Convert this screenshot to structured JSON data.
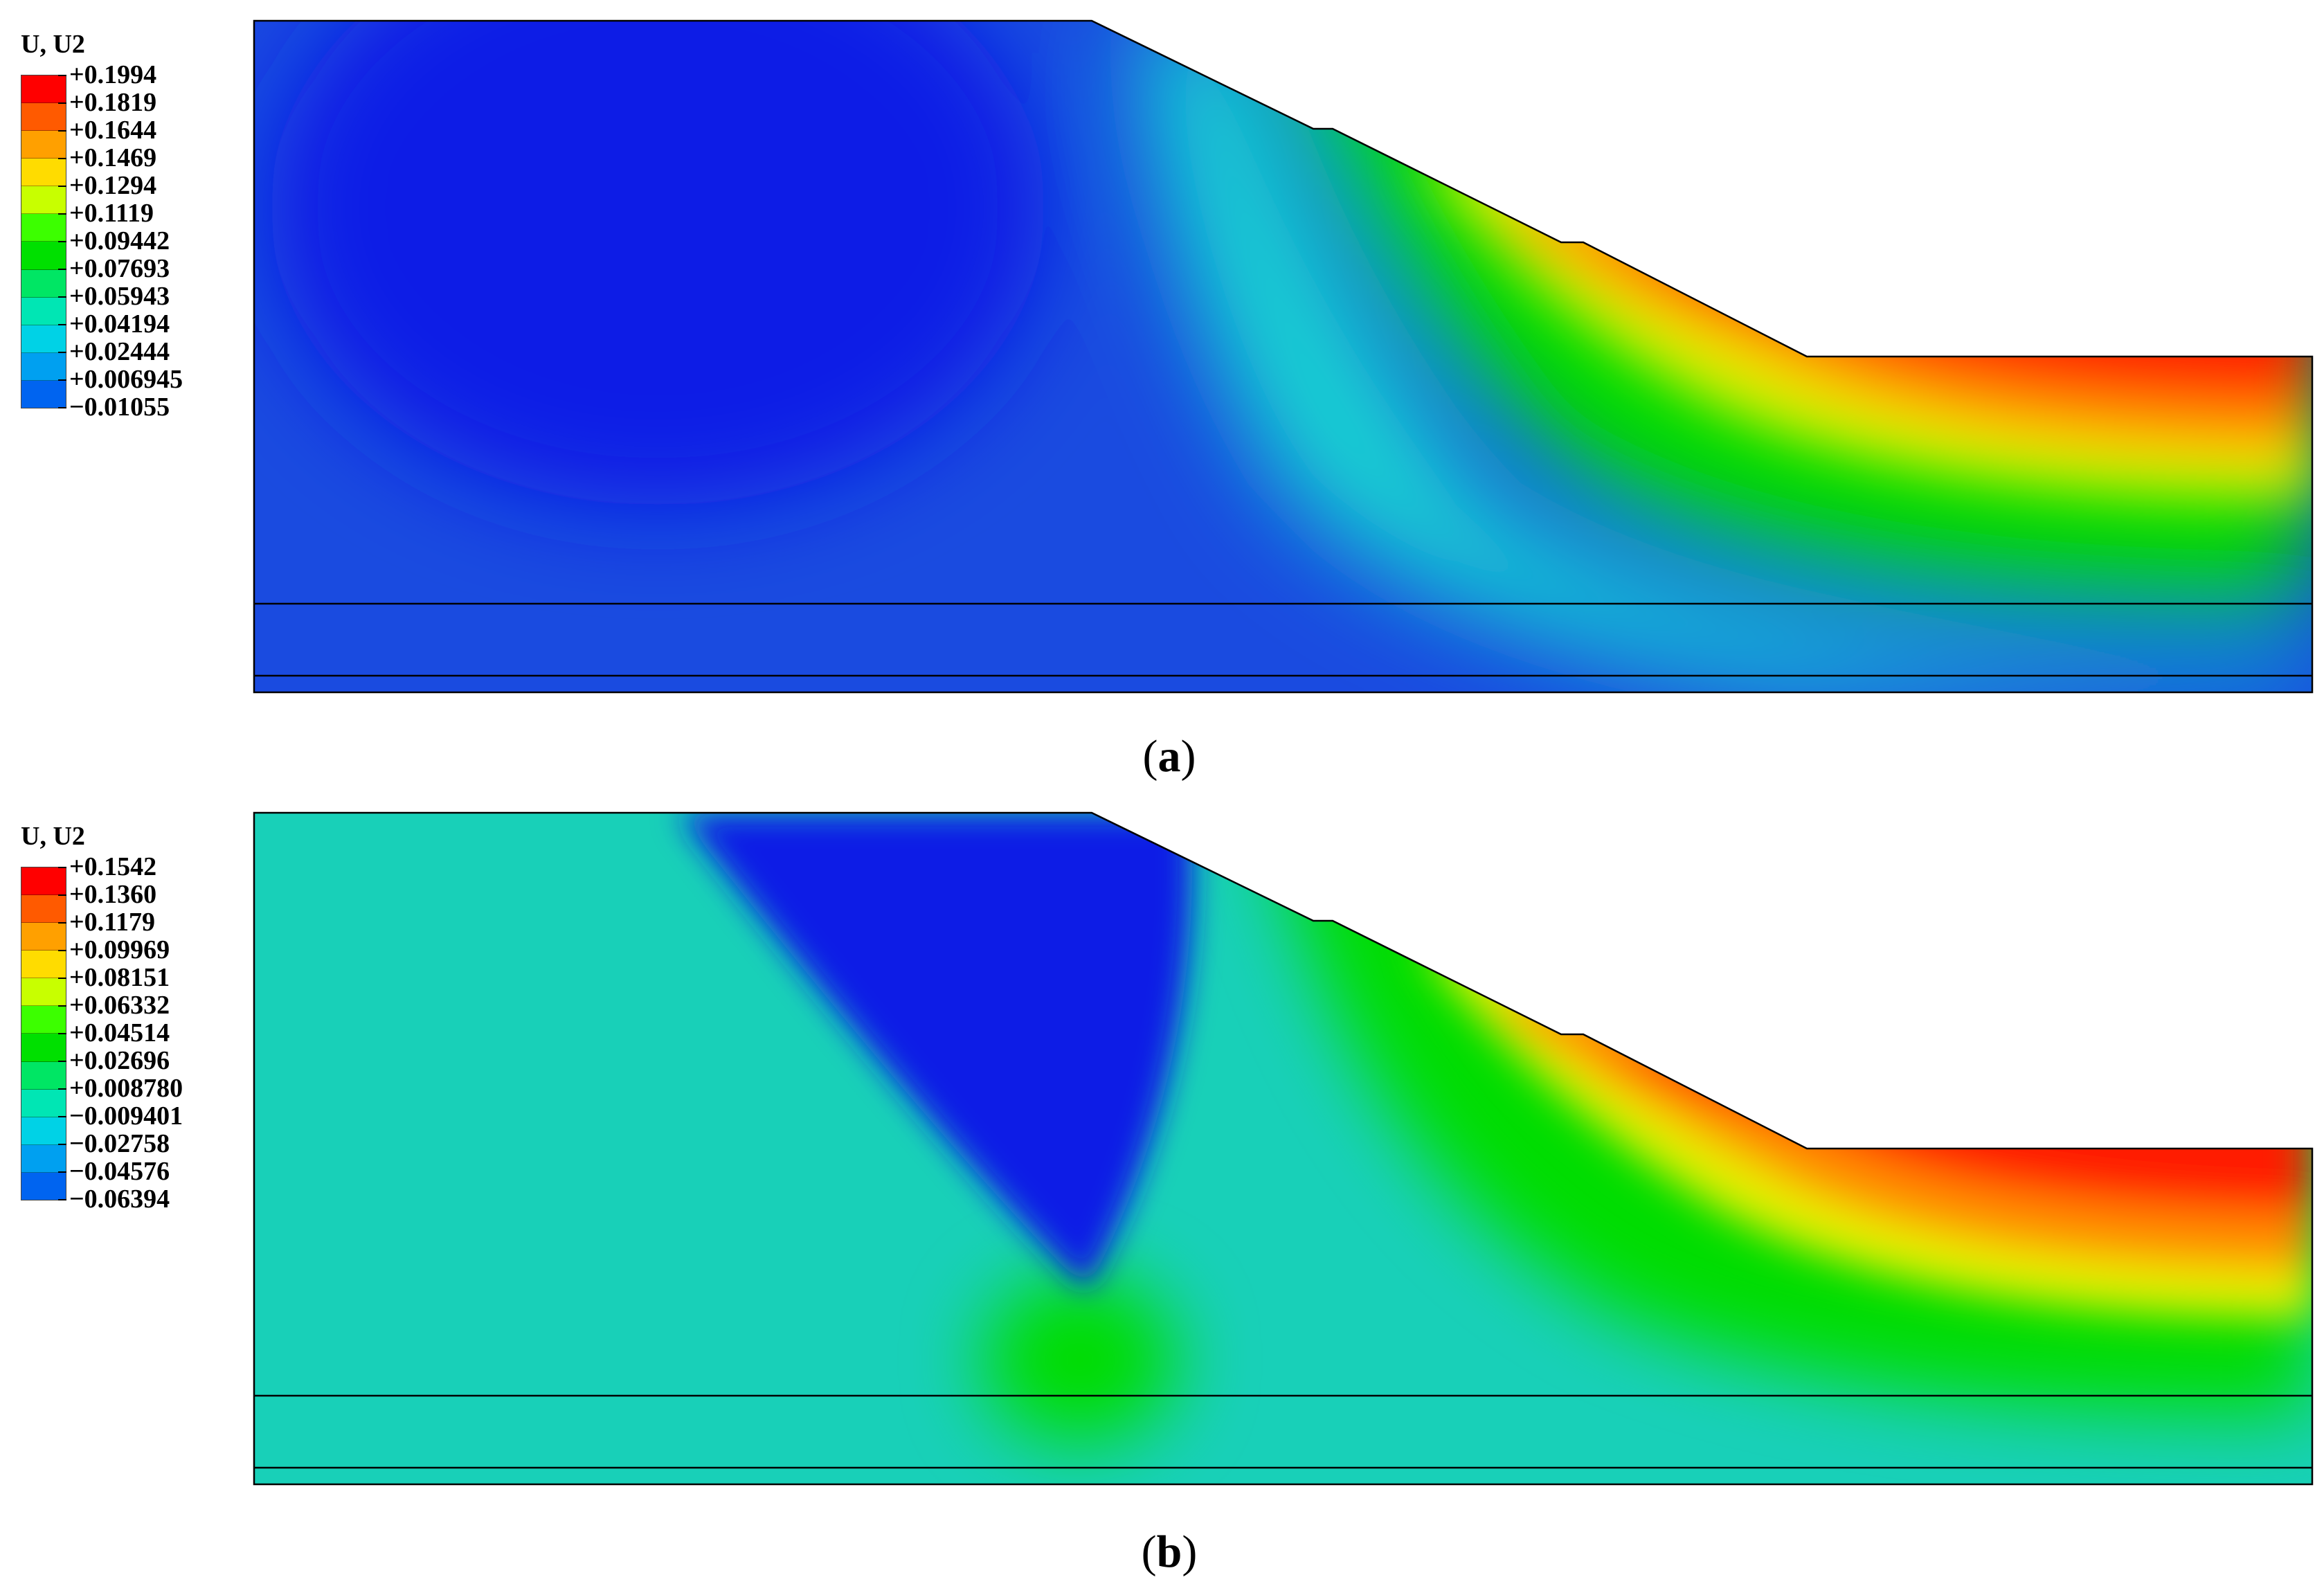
{
  "panels": [
    {
      "id": "a",
      "legend_title": "U, U2",
      "legend_values": [
        "+0.1994",
        "+0.1819",
        "+0.1644",
        "+0.1469",
        "+0.1294",
        "+0.1119",
        "+0.09442",
        "+0.07693",
        "+0.05943",
        "+0.04194",
        "+0.02444",
        "+0.006945",
        "−0.01055"
      ],
      "caption_letter": "a"
    },
    {
      "id": "b",
      "legend_title": "U, U2",
      "legend_values": [
        "+0.1542",
        "+0.1360",
        "+0.1179",
        "+0.09969",
        "+0.08151",
        "+0.06332",
        "+0.04514",
        "+0.02696",
        "+0.008780",
        "−0.009401",
        "−0.02758",
        "−0.04576",
        "−0.06394"
      ],
      "caption_letter": "b"
    }
  ],
  "colormap": [
    "#ff0000",
    "#ff5a00",
    "#ffa000",
    "#ffdc00",
    "#c8ff00",
    "#3cff00",
    "#00e000",
    "#00e664",
    "#00e6b4",
    "#00d2e6",
    "#00a0f0",
    "#0064f0",
    "#0000dc"
  ],
  "field_colors": {
    "deep_blue": "#0a1ee6",
    "blue": "#1a4be0",
    "cyan": "#14d2d2",
    "teal": "#18d0b8",
    "green": "#00dd00",
    "yellow": "#e6f000",
    "orange": "#ff8c00",
    "red": "#ff1a00"
  }
}
